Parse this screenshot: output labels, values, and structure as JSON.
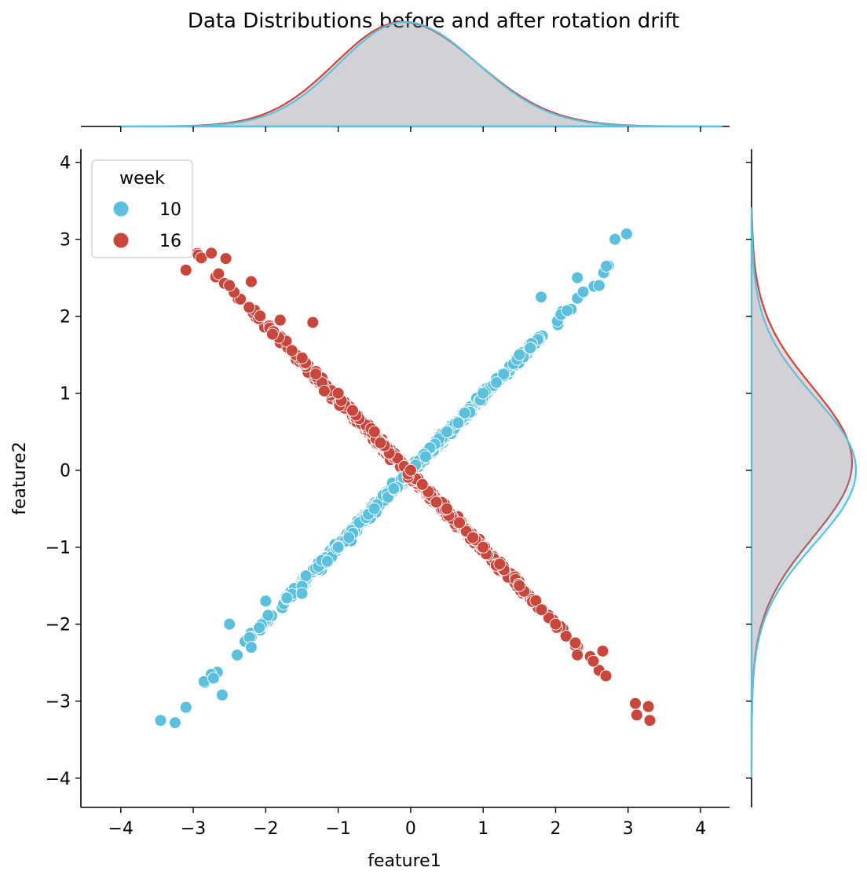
{
  "chart_data": {
    "type": "scatter",
    "title": "Data Distributions before and after rotation drift",
    "xlabel": "feature1",
    "ylabel": "feature2",
    "xlim": [
      -4.55,
      4.4
    ],
    "ylim": [
      -4.38,
      4.17
    ],
    "x_ticks": [
      -4,
      -3,
      -2,
      -1,
      0,
      1,
      2,
      3,
      4
    ],
    "y_ticks": [
      -4,
      -3,
      -2,
      -1,
      0,
      1,
      2,
      3,
      4
    ],
    "x_tick_labels": [
      "−4",
      "−3",
      "−2",
      "−1",
      "0",
      "1",
      "2",
      "3",
      "4"
    ],
    "y_tick_labels": [
      "−4",
      "−3",
      "−2",
      "−1",
      "0",
      "1",
      "2",
      "3",
      "4"
    ],
    "grid": false,
    "marginals": "kde",
    "legend": {
      "title": "week",
      "placement": "upper-left",
      "entries": [
        "10",
        "16"
      ]
    },
    "series": [
      {
        "name": "10",
        "color": "#5bc0de",
        "relationship": "positive correlation, slope ~0.96",
        "points_sample": [
          [
            -3.45,
            -3.25
          ],
          [
            -3.25,
            -3.28
          ],
          [
            -3.1,
            -3.08
          ],
          [
            -2.72,
            -2.7
          ],
          [
            -2.6,
            -2.92
          ],
          [
            -2.5,
            -2.0
          ],
          [
            -2.2,
            -2.3
          ],
          [
            -2.0,
            -1.7
          ],
          [
            -1.5,
            -1.6
          ],
          [
            -1.0,
            -1.0
          ],
          [
            -0.5,
            -0.5
          ],
          [
            0.0,
            0.0
          ],
          [
            0.5,
            0.5
          ],
          [
            1.0,
            1.0
          ],
          [
            1.5,
            1.5
          ],
          [
            1.8,
            2.25
          ],
          [
            2.3,
            2.5
          ],
          [
            2.6,
            2.4
          ],
          [
            2.7,
            2.65
          ],
          [
            2.82,
            3.0
          ],
          [
            2.98,
            3.07
          ]
        ]
      },
      {
        "name": "16",
        "color": "#c9463d",
        "relationship": "negative correlation, slope ~-1.0",
        "points_sample": [
          [
            -3.1,
            2.6
          ],
          [
            -2.75,
            2.82
          ],
          [
            -2.55,
            2.75
          ],
          [
            -2.5,
            2.4
          ],
          [
            -2.2,
            2.45
          ],
          [
            -1.8,
            1.95
          ],
          [
            -1.35,
            1.92
          ],
          [
            -1.0,
            1.0
          ],
          [
            -0.5,
            0.5
          ],
          [
            0.0,
            0.0
          ],
          [
            0.5,
            -0.5
          ],
          [
            1.0,
            -1.0
          ],
          [
            1.5,
            -1.5
          ],
          [
            2.0,
            -2.0
          ],
          [
            2.3,
            -2.4
          ],
          [
            2.52,
            -2.48
          ],
          [
            2.65,
            -2.35
          ],
          [
            3.1,
            -3.03
          ],
          [
            3.28,
            -3.07
          ],
          [
            3.12,
            -3.18
          ],
          [
            3.3,
            -3.25
          ]
        ]
      }
    ]
  }
}
